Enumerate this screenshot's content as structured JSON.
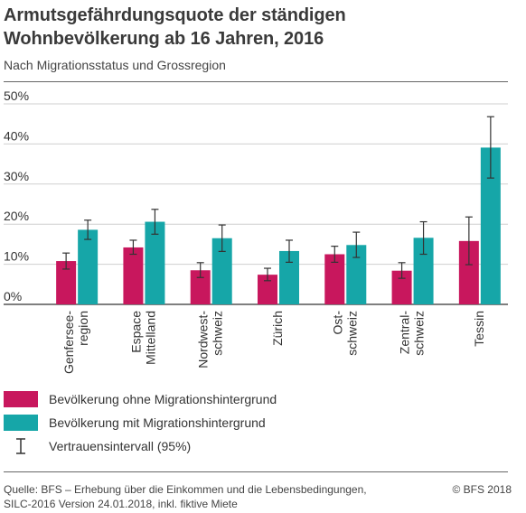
{
  "title_line1": "Armutsgefährdungsquote der ständigen",
  "title_line2": "Wohnbevölkerung ab 16 Jahren, 2016",
  "subtitle": "Nach Migrationsstatus und Grossregion",
  "colors": {
    "ohne": "#c8175d",
    "mit": "#16a6a8",
    "grid": "#cfcfcf",
    "axis": "#333333"
  },
  "chart_data": {
    "type": "bar",
    "title": "Armutsgefährdungsquote der ständigen Wohnbevölkerung ab 16 Jahren, 2016",
    "subtitle": "Nach Migrationsstatus und Grossregion",
    "categories": [
      "Genfersee-\nregion",
      "Espace\nMittelland",
      "Nordwest-\nschweiz",
      "Zürich",
      "Ost-\nschweiz",
      "Zentral-\nschweiz",
      "Tessin"
    ],
    "series": [
      {
        "name": "Bevölkerung ohne Migrationshintergrund",
        "values": [
          10.8,
          14.2,
          8.5,
          7.4,
          12.5,
          8.4,
          15.8
        ],
        "ci_low": [
          8.8,
          12.5,
          6.7,
          5.9,
          10.5,
          6.5,
          9.9
        ],
        "ci_high": [
          12.8,
          16.0,
          10.4,
          9.0,
          14.5,
          10.4,
          21.8
        ]
      },
      {
        "name": "Bevölkerung mit Migrationshintergrund",
        "values": [
          18.6,
          20.6,
          16.5,
          13.3,
          14.8,
          16.6,
          39.1
        ],
        "ci_low": [
          16.2,
          17.5,
          13.2,
          10.5,
          11.7,
          12.5,
          31.5
        ],
        "ci_high": [
          21.0,
          23.7,
          19.8,
          16.0,
          18.0,
          20.6,
          46.8
        ]
      }
    ],
    "yticks": [
      "0%",
      "10%",
      "20%",
      "30%",
      "40%",
      "50%"
    ],
    "ylim": [
      0,
      50
    ],
    "grid": true,
    "legend_position": "bottom"
  },
  "legend": {
    "ohne_label": "Bevölkerung ohne Migrationshintergrund",
    "mit_label": "Bevölkerung mit Migrationshintergrund",
    "ci_label": "Vertrauensintervall (95%)"
  },
  "footer": {
    "source_line1": "Quelle: BFS – Erhebung über die Einkommen und die Lebensbedingungen,",
    "source_line2": "SILC-2016 Version 24.01.2018, inkl. fiktive Miete",
    "copyright": "© BFS 2018"
  }
}
